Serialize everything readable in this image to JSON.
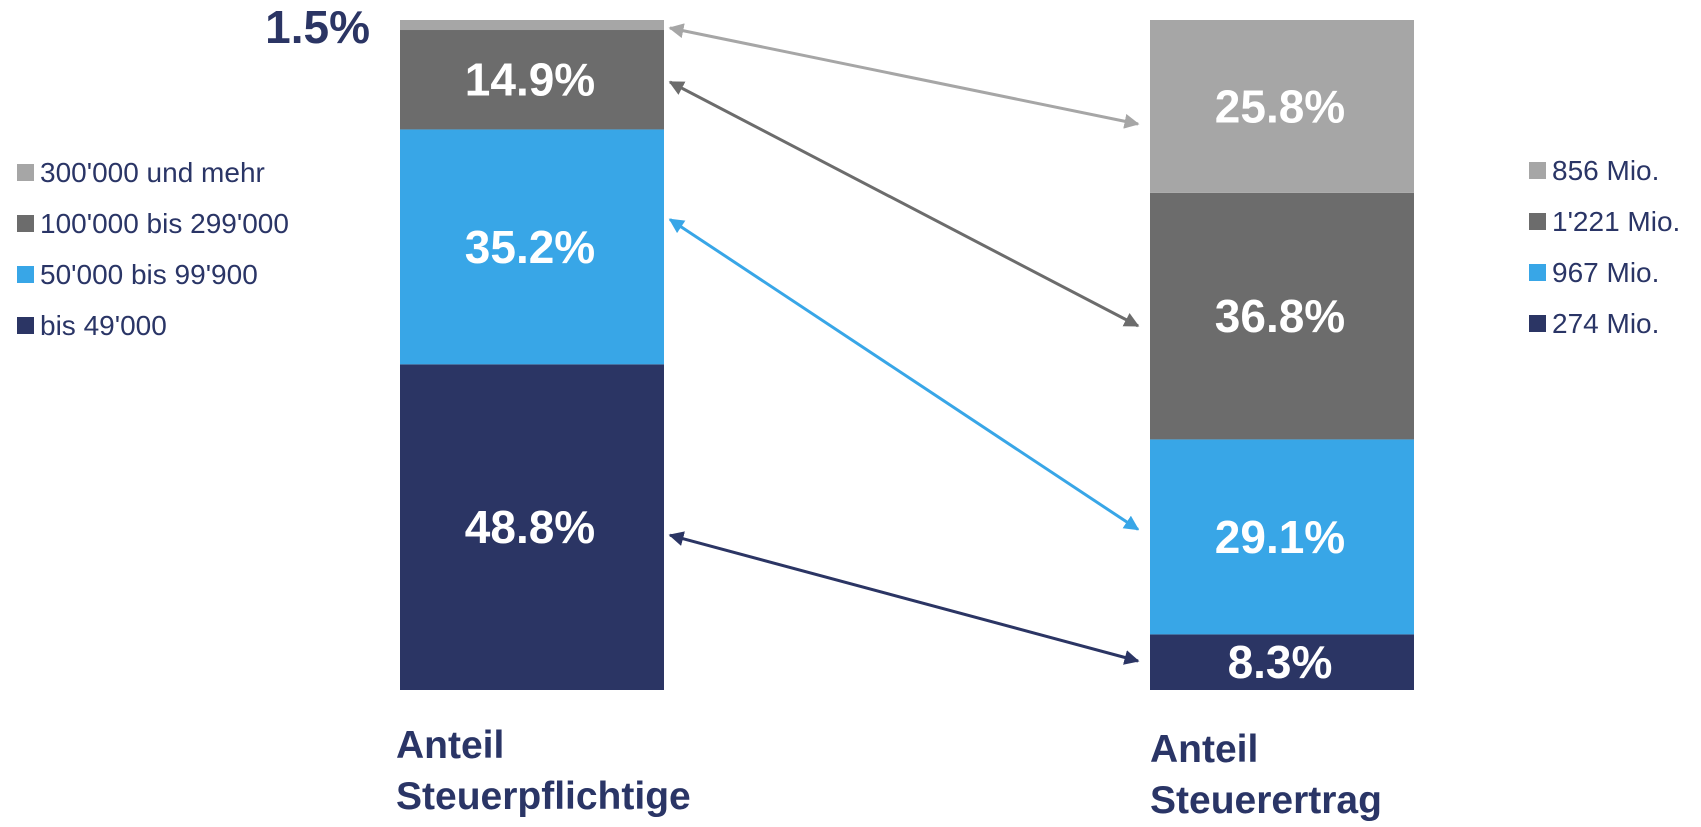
{
  "chart_data": {
    "type": "bar",
    "stacked": true,
    "value_format": "percent",
    "categories": [
      "Anteil Steuerpflichtige",
      "Anteil Steuerertrag"
    ],
    "category_lines": [
      [
        "Anteil",
        "Steuerpflichtige"
      ],
      [
        "Anteil",
        "Steuerertrag"
      ]
    ],
    "series": [
      {
        "name": "bis 49'000",
        "color": "#2b3564",
        "values": [
          48.8,
          8.3
        ],
        "labels": [
          "48.8%",
          "8.3%"
        ],
        "amount": "274 Mio."
      },
      {
        "name": "50'000 bis 99'900",
        "color": "#38a6e7",
        "values": [
          35.2,
          29.1
        ],
        "labels": [
          "35.2%",
          "29.1%"
        ],
        "amount": "967 Mio."
      },
      {
        "name": "100'000 bis 299'000",
        "color": "#6c6c6c",
        "values": [
          14.9,
          36.8
        ],
        "labels": [
          "14.9%",
          "36.8%"
        ],
        "amount": "1'221 Mio."
      },
      {
        "name": "300'000 und mehr",
        "color": "#a6a6a6",
        "values": [
          1.5,
          25.8
        ],
        "labels": [
          "1.5%",
          "25.8%"
        ],
        "amount": "856 Mio."
      }
    ],
    "legend_left_placement": "left",
    "legend_right_placement": "right",
    "connectors": "double-headed arrows linking matching segments of both bars",
    "grid": false
  }
}
